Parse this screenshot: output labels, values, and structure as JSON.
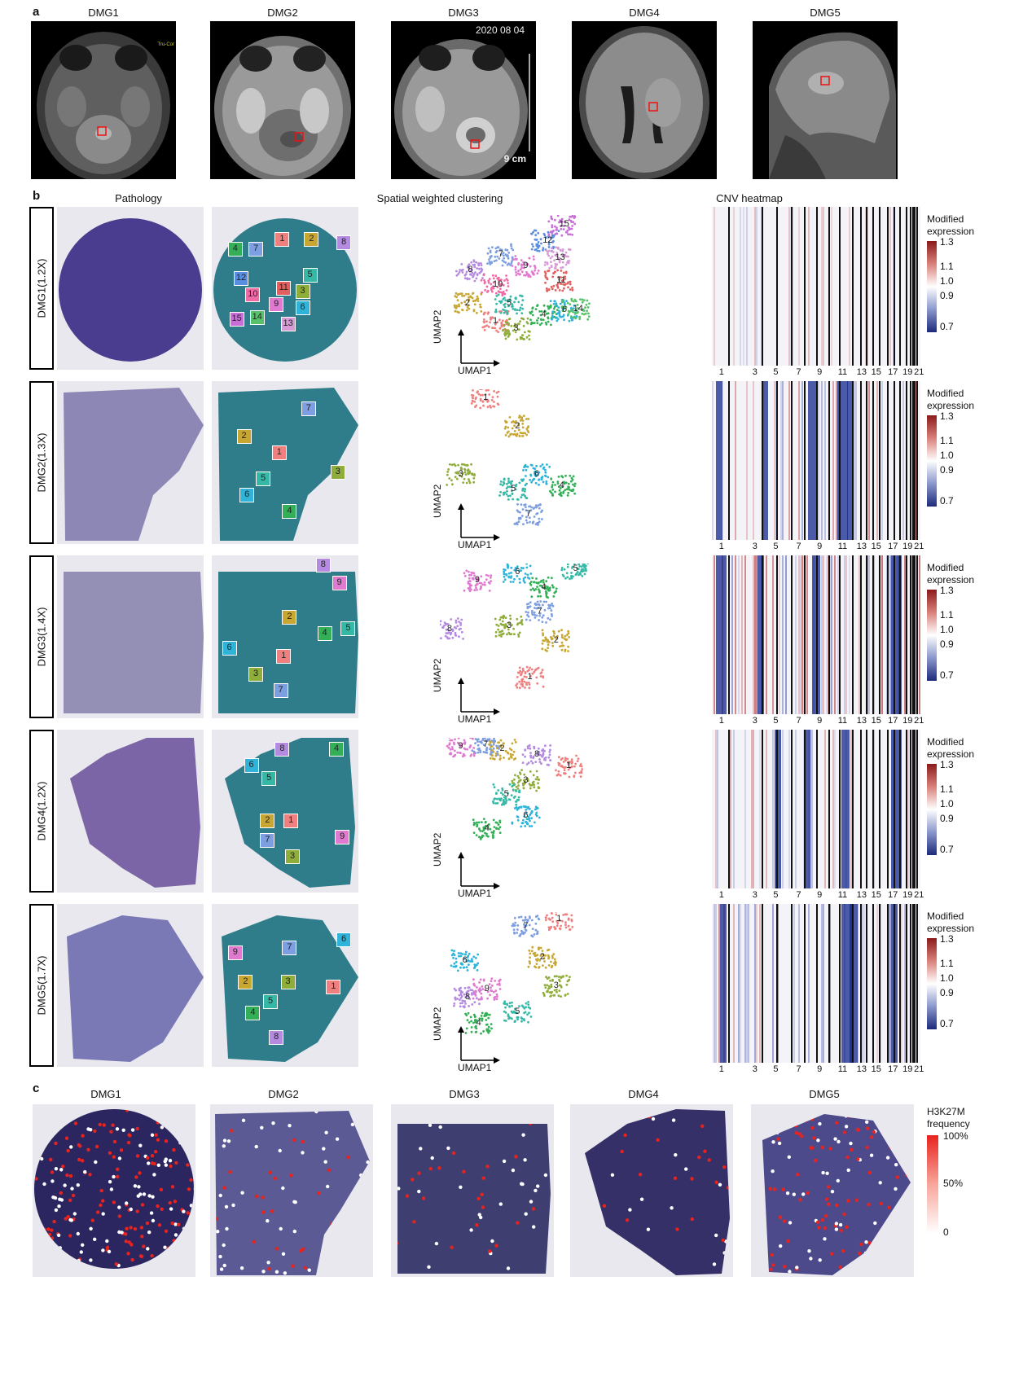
{
  "panel_a": {
    "label": "a",
    "samples": [
      "DMG1",
      "DMG2",
      "DMG3",
      "DMG4",
      "DMG5"
    ],
    "overlay_text": {
      "date": "2020 08 04",
      "scale": "9 cm",
      "corner": "Tru-Cor"
    }
  },
  "panel_b": {
    "label": "b",
    "columns": [
      "Pathology",
      "Spatial weighted clustering",
      "CNV heatmap"
    ],
    "rows": [
      {
        "name": "DMG1(1.2X)",
        "clusters": [
          "1",
          "2",
          "3",
          "4",
          "5",
          "6",
          "7",
          "8",
          "9",
          "10",
          "11",
          "12",
          "13",
          "14",
          "15"
        ]
      },
      {
        "name": "DMG2(1.3X)",
        "clusters": [
          "1",
          "2",
          "3",
          "4",
          "5",
          "6",
          "7"
        ]
      },
      {
        "name": "DMG3(1.4X)",
        "clusters": [
          "1",
          "2",
          "3",
          "4",
          "5",
          "6",
          "7",
          "8",
          "9"
        ]
      },
      {
        "name": "DMG4(1.2X)",
        "clusters": [
          "1",
          "2",
          "3",
          "4",
          "5",
          "6",
          "7",
          "8",
          "9"
        ]
      },
      {
        "name": "DMG5(1.7X)",
        "clusters": [
          "1",
          "2",
          "3",
          "4",
          "5",
          "6",
          "7",
          "8",
          "9"
        ]
      }
    ],
    "umap_axes": {
      "x": "UMAP1",
      "y": "UMAP2"
    },
    "colorbar": {
      "title_line1": "Modified",
      "title_line2": "expression",
      "ticks": [
        "1.3",
        "1.1",
        "1.0",
        "0.9",
        "0.7"
      ]
    },
    "chromosome_ticks": [
      "1",
      "3",
      "5",
      "7",
      "9",
      "11",
      "13",
      "15",
      "17",
      "19",
      "21"
    ]
  },
  "panel_c": {
    "label": "c",
    "samples": [
      "DMG1",
      "DMG2",
      "DMG3",
      "DMG4",
      "DMG5"
    ],
    "colorbar": {
      "title_line1": "H3K27M",
      "title_line2": "frequency",
      "ticks": [
        "100%",
        "50%",
        "0"
      ]
    }
  },
  "cluster_colors": [
    "#f08080",
    "#c7a632",
    "#8fad3a",
    "#33b057",
    "#35b9a6",
    "#2fb3d8",
    "#7d9ee0",
    "#b48be0",
    "#e07ad0",
    "#f06aa6",
    "#e06060",
    "#5a8ee0",
    "#d89bd8",
    "#58c26a",
    "#c76fd6"
  ]
}
